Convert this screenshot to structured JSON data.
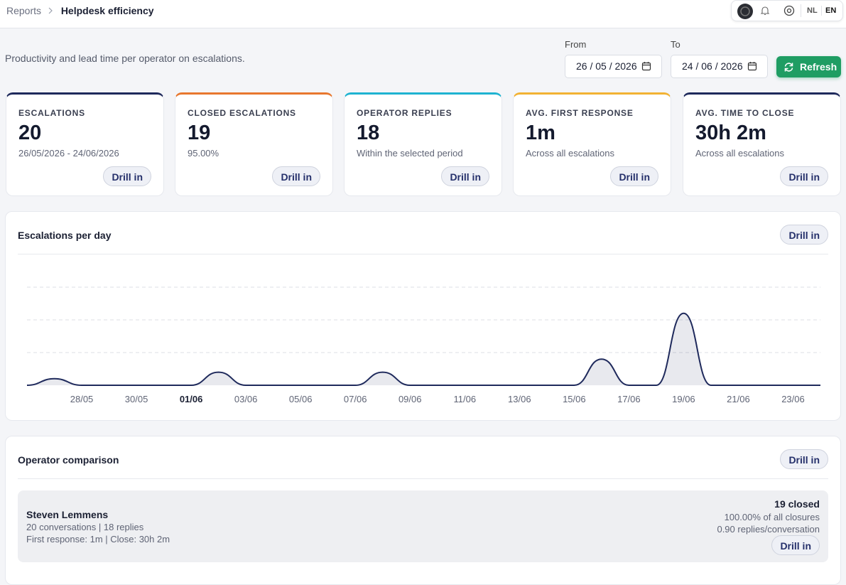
{
  "header": {
    "breadcrumb_parent": "Reports",
    "title": "Helpdesk efficiency",
    "languages": [
      "NL",
      "EN"
    ]
  },
  "subtitle": "Productivity and lead time per operator on escalations.",
  "filters": {
    "from_label": "From",
    "from_value": "26 / 05 / 2026",
    "to_label": "To",
    "to_value": "24 / 06 / 2026",
    "refresh": "Refresh"
  },
  "kpis": [
    {
      "label": "ESCALATIONS",
      "value": "20",
      "note": "26/05/2026 - 24/06/2026",
      "action": "Drill in",
      "color": "#1f2a5c"
    },
    {
      "label": "CLOSED ESCALATIONS",
      "value": "19",
      "note": "95.00%",
      "action": "Drill in",
      "color": "#e8772e"
    },
    {
      "label": "OPERATOR REPLIES",
      "value": "18",
      "note": "Within the selected period",
      "action": "Drill in",
      "color": "#1fb3d1"
    },
    {
      "label": "AVG. FIRST RESPONSE",
      "value": "1m",
      "note": "Across all escalations",
      "action": "Drill in",
      "color": "#f2b233"
    },
    {
      "label": "AVG. TIME TO CLOSE",
      "value": "30h 2m",
      "note": "Across all escalations",
      "action": "Drill in",
      "color": "#1f2a5c"
    }
  ],
  "chart_data": {
    "type": "area",
    "title": "Escalations per day",
    "action": "Drill in",
    "categories": [
      null,
      null,
      "28/05",
      null,
      "30/05",
      null,
      "01/06",
      null,
      "03/06",
      null,
      "05/06",
      null,
      "07/06",
      null,
      "09/06",
      null,
      "11/06",
      null,
      "13/06",
      null,
      "15/06",
      null,
      "17/06",
      null,
      "19/06",
      null,
      "21/06",
      null,
      "23/06",
      null
    ],
    "emphasized_category": 6,
    "values": [
      0,
      1,
      0,
      0,
      0,
      0,
      0,
      2,
      0,
      0,
      0,
      0,
      0,
      2,
      0,
      0,
      0,
      0,
      0,
      0,
      0,
      4,
      0,
      0,
      11,
      0,
      0,
      0,
      0,
      0
    ],
    "color": "#1f2a5c",
    "ylim": [
      0,
      20
    ],
    "yticks": [
      5,
      10,
      15
    ],
    "grid": true
  },
  "operators": {
    "title": "Operator comparison",
    "action": "Drill in",
    "rows": [
      {
        "name": "Steven Lemmens",
        "stats": "20 conversations | 18 replies",
        "times": "First response: 1m | Close: 30h 2m",
        "closed": "19 closed",
        "share": "100.00% of all closures",
        "ratio": "0.90 replies/conversation",
        "action": "Drill in"
      }
    ]
  }
}
